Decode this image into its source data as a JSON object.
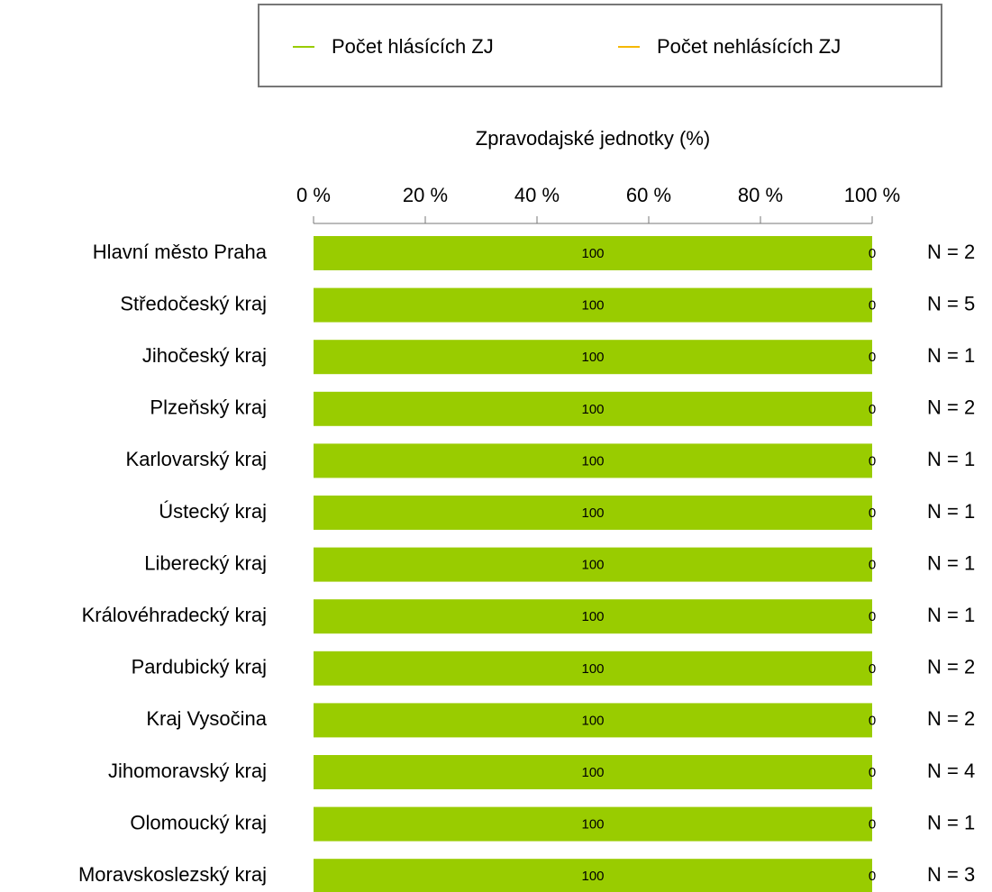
{
  "chart_data": {
    "type": "stacked_barh",
    "x_label": "Zpravodajské jednotky (%)",
    "categories": [
      "Hlavní město Praha",
      "Středočeský kraj",
      "Jihočeský kraj",
      "Plzeňský kraj",
      "Karlovarský kraj",
      "Ústecký kraj",
      "Liberecký kraj",
      "Královéhradecký kraj",
      "Pardubický kraj",
      "Kraj Vysočina",
      "Jihomoravský kraj",
      "Olomoucký kraj",
      "Moravskoslezský kraj"
    ],
    "series": [
      {
        "name": "Počet hlásících ZJ",
        "color": "#99cc00",
        "values": [
          100,
          100,
          100,
          100,
          100,
          100,
          100,
          100,
          100,
          100,
          100,
          100,
          100
        ]
      },
      {
        "name": "Počet nehlásících ZJ",
        "color": "#f5b800",
        "values": [
          0,
          0,
          0,
          0,
          0,
          0,
          0,
          0,
          0,
          0,
          0,
          0,
          0
        ]
      }
    ],
    "annotations": [
      "N = 2",
      "N = 5",
      "N = 1",
      "N = 2",
      "N = 1",
      "N = 1",
      "N = 1",
      "N = 1",
      "N = 2",
      "N = 2",
      "N = 4",
      "N = 1",
      "N = 3"
    ],
    "xlim": [
      0,
      100
    ],
    "xticks": [
      {
        "value": 0,
        "label": "0 %"
      },
      {
        "value": 20,
        "label": "20 %"
      },
      {
        "value": 40,
        "label": "40 %"
      },
      {
        "value": 60,
        "label": "60 %"
      },
      {
        "value": 80,
        "label": "80 %"
      },
      {
        "value": 100,
        "label": "100 %"
      }
    ],
    "legend": "top"
  }
}
